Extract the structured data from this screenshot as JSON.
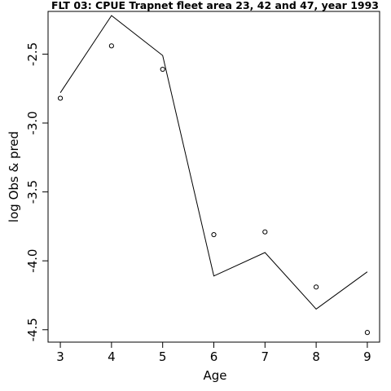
{
  "chart_data": {
    "type": "line",
    "title": "FLT 03: CPUE Trapnet fleet area 23, 42 and 47, year 1993",
    "xlabel": "Age",
    "ylabel": "log Obs & pred",
    "x": [
      3,
      4,
      5,
      6,
      7,
      8,
      9
    ],
    "xticks": [
      "3",
      "4",
      "5",
      "6",
      "7",
      "8",
      "9"
    ],
    "yticks": [
      "-2.5",
      "-3.0",
      "-3.5",
      "-4.0",
      "-4.5"
    ],
    "ytick_values": [
      -2.5,
      -3.0,
      -3.5,
      -4.0,
      -4.5
    ],
    "xlim": [
      2.76,
      9.24
    ],
    "ylim": [
      -4.59,
      -2.19
    ],
    "series": [
      {
        "style": "line",
        "color": "#000000",
        "values": [
          -2.78,
          -2.22,
          -2.51,
          -4.11,
          -3.94,
          -4.35,
          -4.08
        ]
      },
      {
        "style": "points",
        "marker": "open-circle",
        "color": "#000000",
        "values": [
          -2.82,
          -2.44,
          -2.61,
          -3.81,
          -3.79,
          -4.19,
          -4.52
        ]
      }
    ],
    "grid": false,
    "legend": "none"
  }
}
